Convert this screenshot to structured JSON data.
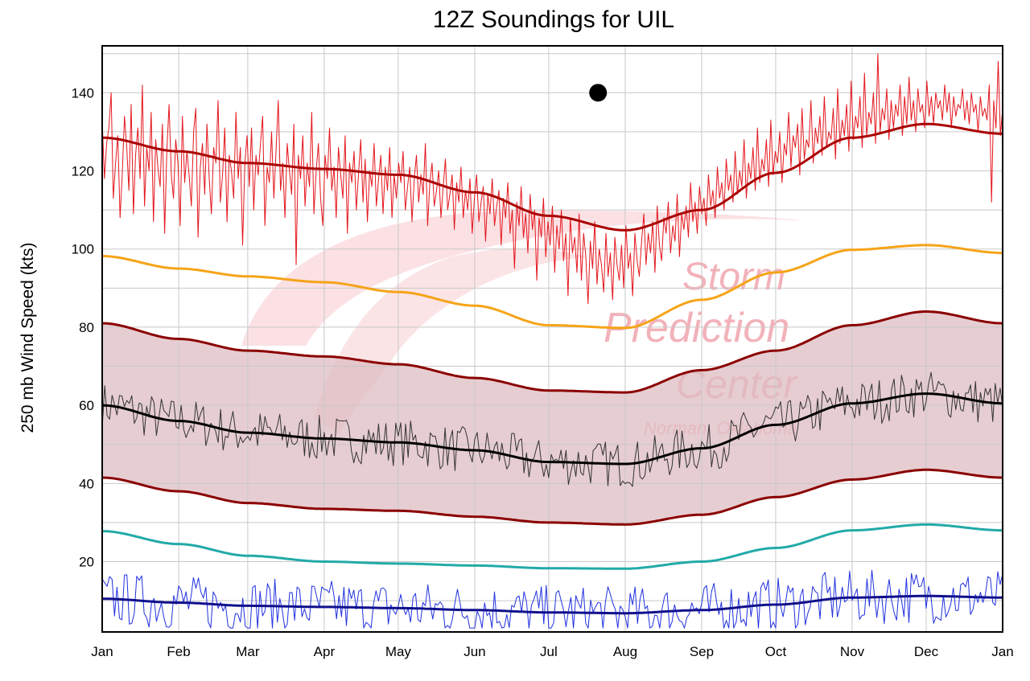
{
  "chart_data": {
    "type": "line",
    "title": "12Z Soundings for UIL",
    "xlabel": "",
    "ylabel": "250 mb Wind Speed (kts)",
    "x_ticks": [
      "Jan",
      "Feb",
      "Mar",
      "Apr",
      "May",
      "Jun",
      "Jul",
      "Aug",
      "Sep",
      "Oct",
      "Nov",
      "Dec",
      "Jan"
    ],
    "y_ticks": [
      20,
      40,
      60,
      80,
      100,
      120,
      140
    ],
    "ylim": [
      2,
      152
    ],
    "grid": true,
    "watermark": {
      "line1": "Storm",
      "line2": "Prediction",
      "line3": "Center",
      "line4": "Norman, Oklahoma"
    },
    "band": {
      "name": "normal range",
      "fill": "#ddbcc2",
      "x": [
        "01-01",
        "02-01",
        "03-01",
        "04-01",
        "05-01",
        "06-01",
        "07-01",
        "08-01",
        "09-01",
        "10-01",
        "11-01",
        "12-01",
        "12-31"
      ]
    },
    "series": [
      {
        "color": "#e4161c",
        "style": "thin",
        "x": "daily",
        "values_note": "",
        "values": [
          133,
          118,
          127,
          131,
          140,
          113,
          122,
          129,
          108,
          119,
          134,
          126,
          115,
          137,
          109,
          124,
          131,
          118,
          142,
          111,
          126,
          120,
          135,
          107,
          128,
          121,
          116,
          132,
          104,
          125,
          137,
          119,
          113,
          128,
          122,
          106,
          134,
          117,
          125,
          119,
          111,
          130,
          136,
          103,
          121,
          127,
          114,
          132,
          118,
          109,
          126,
          122,
          138,
          112,
          119,
          131,
          107,
          124,
          120,
          113,
          135,
          118,
          126,
          101,
          122,
          129,
          116,
          131,
          110,
          124,
          119,
          127,
          134,
          106,
          121,
          117,
          130,
          113,
          125,
          138,
          115,
          122,
          108,
          127,
          120,
          114,
          132,
          96,
          124,
          118,
          129,
          111,
          122,
          116,
          135,
          109,
          120,
          127,
          113,
          106,
          124,
          118,
          131,
          115,
          121,
          108,
          126,
          119,
          113,
          129,
          104,
          122,
          117,
          125,
          110,
          119,
          128,
          112,
          123,
          107,
          120,
          116,
          127,
          111,
          118,
          124,
          109,
          121,
          115,
          126,
          108,
          119,
          113,
          122,
          117,
          125,
          110,
          116,
          121,
          107,
          118,
          124,
          112,
          119,
          114,
          127,
          106,
          117,
          122,
          111,
          115,
          120,
          108,
          116,
          123,
          110,
          114,
          119,
          105,
          117,
          112,
          121,
          108,
          115,
          110,
          118,
          104,
          113,
          119,
          107,
          112,
          116,
          102,
          114,
          109,
          118,
          106,
          111,
          115,
          101,
          113,
          108,
          117,
          104,
          110,
          95,
          112,
          106,
          116,
          103,
          109,
          99,
          114,
          105,
          110,
          92,
          108,
          103,
          113,
          98,
          107,
          101,
          111,
          94,
          106,
          100,
          110,
          97,
          104,
          88,
          108,
          99,
          103,
          94,
          109,
          92,
          104,
          98,
          86,
          102,
          95,
          107,
          91,
          100,
          96,
          89,
          104,
          93,
          99,
          87,
          103,
          96,
          92,
          101,
          90,
          106,
          95,
          99,
          88,
          104,
          97,
          93,
          102,
          109,
          96,
          104,
          99,
          107,
          94,
          111,
          101,
          97,
          108,
          104,
          112,
          99,
          106,
          102,
          114,
          98,
          109,
          105,
          111,
          103,
          117,
          107,
          112,
          104,
          116,
          109,
          113,
          106,
          119,
          111,
          115,
          108,
          121,
          113,
          117,
          110,
          123,
          115,
          119,
          112,
          125,
          114,
          120,
          116,
          128,
          113,
          122,
          118,
          126,
          115,
          131,
          117,
          123,
          120,
          128,
          116,
          133,
          119,
          125,
          122,
          130,
          117,
          127,
          124,
          135,
          121,
          129,
          126,
          132,
          119,
          136,
          123,
          128,
          126,
          138,
          122,
          131,
          127,
          134,
          124,
          139,
          126,
          130,
          128,
          136,
          123,
          141,
          127,
          133,
          129,
          137,
          125,
          143,
          128,
          134,
          131,
          139,
          126,
          145,
          129,
          135,
          132,
          140,
          127,
          150,
          130,
          136,
          133,
          141,
          128,
          138,
          131,
          137,
          134,
          142,
          129,
          139,
          132,
          144,
          133,
          138,
          130,
          141,
          135,
          137,
          131,
          143,
          134,
          139,
          132,
          140,
          136,
          138,
          133,
          142,
          135,
          140,
          131,
          139,
          134,
          137,
          136,
          141,
          133,
          138,
          132,
          140,
          135,
          137,
          130,
          139,
          134,
          136,
          133,
          142,
          112,
          138,
          131,
          148,
          129,
          136
        ]
      },
      {
        "color": "#aa0000",
        "style": "mean",
        "x": "daily",
        "values": []
      },
      {
        "color": "#f5a418",
        "style": "line",
        "x": "daily",
        "values": []
      },
      {
        "color": "#8b0000",
        "style": "band-top",
        "x": "daily",
        "values": []
      },
      {
        "color": "#8b0000",
        "style": "band-bottom",
        "x": "daily",
        "values": []
      },
      {
        "color": "#333333",
        "style": "thin",
        "x": "daily",
        "values": []
      },
      {
        "color": "#000000",
        "style": "mean",
        "x": "daily",
        "values": []
      },
      {
        "color": "#22aaa8",
        "style": "line",
        "x": "daily",
        "values": []
      },
      {
        "color": "#2030e0",
        "style": "thin",
        "x": "daily",
        "values": []
      },
      {
        "color": "#10108c",
        "style": "mean",
        "x": "daily",
        "values": []
      }
    ],
    "point": {
      "x": "07-21",
      "y": 140,
      "color": "#000000"
    }
  }
}
